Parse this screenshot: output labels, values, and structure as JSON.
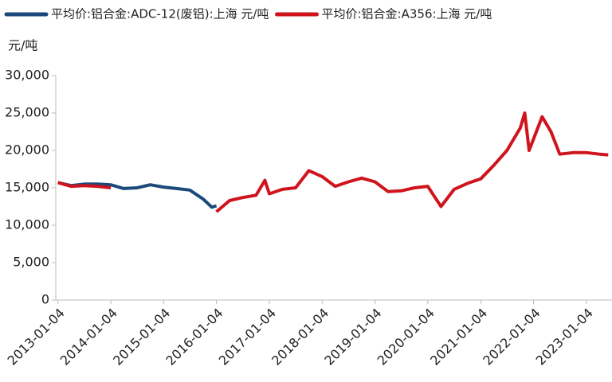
{
  "chart_data": {
    "type": "line",
    "y_unit_label": "元/吨",
    "x": [
      "2013-01-04",
      "2013-04-04",
      "2013-07-04",
      "2013-10-04",
      "2014-01-04",
      "2014-04-04",
      "2014-07-04",
      "2014-10-04",
      "2015-01-04",
      "2015-04-04",
      "2015-07-04",
      "2015-10-04",
      "2015-12-04",
      "2016-01-04",
      "2016-04-04",
      "2016-07-04",
      "2016-10-04",
      "2016-12-04",
      "2017-01-04",
      "2017-04-04",
      "2017-07-04",
      "2017-10-04",
      "2018-01-04",
      "2018-04-04",
      "2018-07-04",
      "2018-10-04",
      "2019-01-04",
      "2019-04-04",
      "2019-07-04",
      "2019-10-04",
      "2020-01-04",
      "2020-04-04",
      "2020-07-04",
      "2020-10-04",
      "2021-01-04",
      "2021-04-04",
      "2021-07-04",
      "2021-10-04",
      "2021-11-04",
      "2021-12-04",
      "2022-03-04",
      "2022-05-04",
      "2022-07-04",
      "2022-10-04",
      "2023-01-04",
      "2023-04-04",
      "2023-06-04"
    ],
    "series": [
      {
        "name": "平均价:铝合金:ADC-12(废铝):上海 元/吨",
        "color": "#1b4a7a",
        "values": [
          15700,
          15300,
          15500,
          15500,
          15400,
          14900,
          15000,
          15400,
          15100,
          14900,
          14700,
          13500,
          12400,
          12600,
          null,
          null,
          null,
          null,
          null,
          null,
          null,
          null,
          null,
          null,
          null,
          null,
          null,
          null,
          null,
          null,
          null,
          null,
          null,
          null,
          null,
          null,
          null,
          null,
          null,
          null,
          null,
          null,
          null,
          null,
          null,
          null,
          null
        ]
      },
      {
        "name": "平均价:铝合金:A356:上海 元/吨",
        "color": "#d0141e",
        "values": [
          15700,
          15200,
          15300,
          15200,
          15000,
          null,
          null,
          null,
          null,
          null,
          null,
          null,
          null,
          11800,
          13300,
          13700,
          14000,
          16000,
          14200,
          14800,
          15000,
          17300,
          16500,
          15200,
          15800,
          16300,
          15800,
          14500,
          14600,
          15000,
          15200,
          12500,
          14800,
          15600,
          16200,
          18000,
          20000,
          23000,
          25000,
          20000,
          24500,
          22500,
          19500,
          19700,
          19700,
          19500,
          19400
        ]
      }
    ],
    "xlim": [
      "2012-12-20",
      "2023-06-30"
    ],
    "xticks": [
      "2013-01-04",
      "2014-01-04",
      "2015-01-04",
      "2016-01-04",
      "2017-01-04",
      "2018-01-04",
      "2019-01-04",
      "2020-01-04",
      "2021-01-04",
      "2022-01-04",
      "2023-01-04"
    ],
    "ylim": [
      0,
      30000
    ],
    "yticks": [
      0,
      {
        "value": 5000,
        "label": "5,000"
      },
      {
        "value": 10000,
        "label": "10,000"
      },
      {
        "value": 15000,
        "label": "15,000"
      },
      {
        "value": 20000,
        "label": "20,000"
      },
      {
        "value": 25000,
        "label": "25,000"
      },
      {
        "value": 30000,
        "label": "30,000"
      }
    ],
    "grid": false,
    "legend": "top"
  }
}
